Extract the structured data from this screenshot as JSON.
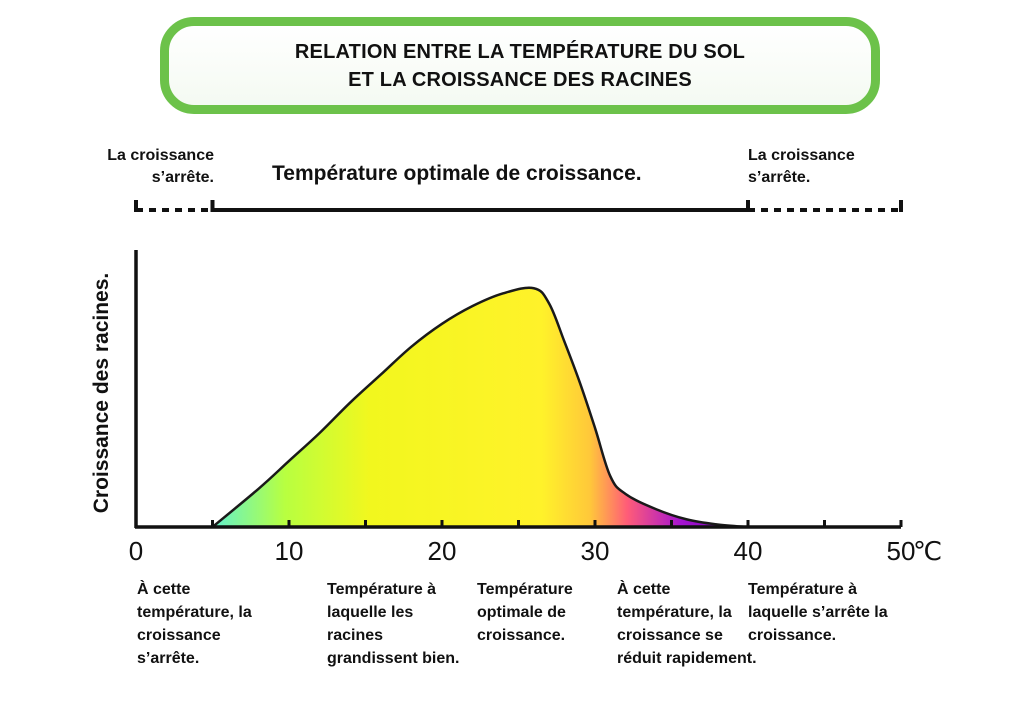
{
  "title": {
    "line1": "RELATION ENTRE LA TEMPÉRATURE DU SOL",
    "line2": "ET LA CROISSANCE DES RACINES"
  },
  "range_labels": {
    "left_stop_line1": "La croissance",
    "left_stop_line2": "s’arrête.",
    "optimal": "Température optimale de croissance.",
    "right_stop_line1": "La croissance",
    "right_stop_line2": "s’arrête."
  },
  "bottom_notes": [
    "À cette température, la croissance s’arrête.",
    "Température à laquelle les racines grandissent bien.",
    "Température optimale de croissance.",
    "À cette température, la croissance se réduit rapidement.",
    "Température à laquelle s’arrête la croissance."
  ],
  "chart_data": {
    "type": "area",
    "title": "RELATION ENTRE LA TEMPÉRATURE DU SOL ET LA CROISSANCE DES RACINES",
    "xlabel": "",
    "ylabel": "Croissance des racines.",
    "x_unit": "℃",
    "xlim": [
      0,
      50
    ],
    "ylim": [
      0,
      100
    ],
    "x_ticks": [
      0,
      10,
      20,
      30,
      40,
      50
    ],
    "x_tick_labels": [
      "0",
      "10",
      "20",
      "30",
      "40",
      "50"
    ],
    "x_minor_ticks": [
      5,
      15,
      25,
      35,
      45
    ],
    "y_ticks_shown": false,
    "grid": false,
    "ranges": [
      {
        "label": "La croissance s’arrête.",
        "from": 0,
        "to": 5,
        "style": "dotted"
      },
      {
        "label": "Température optimale de croissance.",
        "from": 5,
        "to": 40,
        "style": "solid"
      },
      {
        "label": "La croissance s’arrête.",
        "from": 40,
        "to": 50,
        "style": "dotted"
      }
    ],
    "series": [
      {
        "x": [
          5,
          8,
          10,
          12,
          14,
          16,
          18,
          20,
          22,
          24,
          26,
          27,
          28,
          29,
          30,
          31,
          32,
          34,
          36,
          38,
          40
        ],
        "values": [
          0,
          15,
          26,
          37,
          49,
          60,
          71,
          80,
          87,
          92,
          94,
          88,
          73,
          57,
          39,
          20,
          13,
          7,
          3,
          1,
          0
        ]
      }
    ],
    "gradient_colors": [
      "#5ff0d2",
      "#b8ff40",
      "#f2f71e",
      "#fff22a",
      "#ffc83a",
      "#ff5c78",
      "#a514d0",
      "#6e00b0"
    ]
  }
}
